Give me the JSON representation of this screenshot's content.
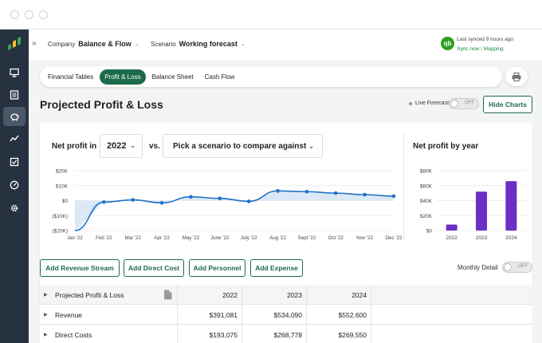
{
  "topbar": {
    "company_label": "Company",
    "company_value": "Balance & Flow",
    "scenario_label": "Scenario",
    "scenario_value": "Working forecast",
    "sync_status": "Last synced 9 hours ago",
    "sync_now": "Sync now",
    "mapping": "Mapping",
    "qb_logo_text": "qb"
  },
  "sidebar": {
    "items": [
      {
        "icon": "monitor-icon"
      },
      {
        "icon": "ledger-icon"
      },
      {
        "icon": "piggy-bank-icon",
        "active": true
      },
      {
        "icon": "trend-line-icon"
      },
      {
        "icon": "checkbox-icon"
      },
      {
        "icon": "gauge-icon"
      },
      {
        "icon": "gear-icon"
      }
    ]
  },
  "tabs": [
    "Financial Tables",
    "Profit & Loss",
    "Balance Sheet",
    "Cash Flow"
  ],
  "active_tab": "Profit & Loss",
  "page": {
    "title": "Projected Profit & Loss",
    "live_forecast_label": "Live Forecast",
    "toggle_off": "OFF",
    "hide_charts": "Hide Charts"
  },
  "chart_panel": {
    "net_profit_in": "Net profit in",
    "year": "2022",
    "vs": "vs.",
    "scenario_placeholder": "Pick a scenario to compare against",
    "by_year_title": "Net profit by year"
  },
  "chart_data": [
    {
      "type": "area",
      "x": [
        "Jan '22",
        "Feb '22",
        "Mar '22",
        "Apr '22",
        "May '22",
        "June '22",
        "July '22",
        "Aug '22",
        "Sept '22",
        "Oct '22",
        "Nov '22",
        "Dec '22"
      ],
      "series": [
        {
          "values": [
            -20000,
            -1000,
            500,
            -1500,
            2500,
            1500,
            -500,
            6500,
            6000,
            5000,
            4000,
            3000
          ]
        }
      ],
      "ylim": [
        -20000,
        20000
      ],
      "yticks": [
        "$20K",
        "$10K",
        "$0",
        "($10K)",
        "($20K)"
      ],
      "color": "#1f72c6",
      "fill": "#dbe8f6"
    },
    {
      "type": "bar",
      "categories": [
        "2022",
        "2023",
        "2024"
      ],
      "values": [
        8000,
        52000,
        66000
      ],
      "ylim": [
        0,
        80000
      ],
      "yticks": [
        "$80K",
        "$60K",
        "$40K",
        "$20K",
        "$0"
      ],
      "color": "#6a2fc4"
    }
  ],
  "actions": {
    "add_revenue": "Add Revenue Stream",
    "add_direct_cost": "Add Direct Cost",
    "add_personnel": "Add Personnel",
    "add_expense": "Add Expense",
    "monthly_detail": "Monthly Detail",
    "monthly_off": "OFF"
  },
  "table": {
    "header": {
      "label": "Projected Profit & Loss",
      "cols": [
        "2022",
        "2023",
        "2024"
      ]
    },
    "rows": [
      {
        "label": "Revenue",
        "values": [
          "$391,081",
          "$534,090",
          "$552,600"
        ]
      },
      {
        "label": "Direct Costs",
        "values": [
          "$193,075",
          "$268,778",
          "$269,550"
        ]
      }
    ]
  }
}
